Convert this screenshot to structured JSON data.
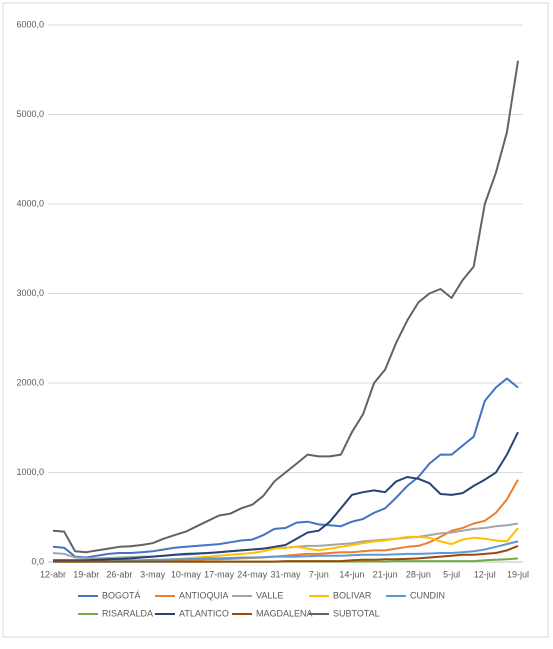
{
  "chart_data": {
    "type": "line",
    "categories": [
      "12-abr",
      null,
      null,
      "19-abr",
      null,
      null,
      "26-abr",
      null,
      null,
      "3-may",
      null,
      null,
      "10-may",
      null,
      null,
      "17-may",
      null,
      null,
      "24-may",
      null,
      null,
      "31-may",
      null,
      null,
      "7-jun",
      null,
      null,
      "14-jun",
      null,
      null,
      "21-jun",
      null,
      null,
      "28-jun",
      null,
      null,
      "5-jul",
      null,
      null,
      "12-jul",
      null,
      null,
      "19-jul"
    ],
    "ylim": [
      0,
      6000
    ],
    "yticks": [
      {
        "value": 0,
        "label": "0,0"
      },
      {
        "value": 1000,
        "label": "1000,0"
      },
      {
        "value": 2000,
        "label": "2000,0"
      },
      {
        "value": 3000,
        "label": "3000,0"
      },
      {
        "value": 4000,
        "label": "4000,0"
      },
      {
        "value": 5000,
        "label": "5000,0"
      },
      {
        "value": 6000,
        "label": "6000,0"
      }
    ],
    "grid": true,
    "legend": "bottom",
    "series": [
      {
        "name": "BOGOTÁ",
        "color": "#4472c4",
        "values": [
          170,
          160,
          60,
          50,
          70,
          90,
          100,
          100,
          110,
          120,
          140,
          160,
          170,
          180,
          190,
          200,
          220,
          240,
          250,
          300,
          370,
          380,
          440,
          450,
          420,
          410,
          400,
          450,
          480,
          550,
          600,
          720,
          850,
          950,
          1100,
          1200,
          1200,
          1300,
          1400,
          1800,
          1950,
          2050,
          1950
        ]
      },
      {
        "name": "ANTIOQUIA",
        "color": "#ed7d31",
        "values": [
          10,
          10,
          10,
          10,
          10,
          12,
          15,
          15,
          15,
          18,
          20,
          20,
          25,
          25,
          30,
          30,
          35,
          40,
          45,
          50,
          60,
          70,
          80,
          90,
          90,
          100,
          110,
          110,
          120,
          130,
          130,
          150,
          170,
          180,
          220,
          280,
          350,
          380,
          430,
          460,
          550,
          700,
          920
        ]
      },
      {
        "name": "VALLE",
        "color": "#a5a5a5",
        "values": [
          100,
          90,
          50,
          40,
          40,
          45,
          50,
          55,
          60,
          60,
          70,
          80,
          80,
          90,
          100,
          110,
          120,
          130,
          140,
          150,
          160,
          160,
          170,
          180,
          180,
          190,
          200,
          210,
          230,
          240,
          250,
          260,
          270,
          280,
          300,
          320,
          330,
          350,
          370,
          380,
          400,
          410,
          430
        ]
      },
      {
        "name": "BOLIVAR",
        "color": "#ffc000",
        "values": [
          5,
          5,
          5,
          5,
          10,
          10,
          10,
          15,
          15,
          20,
          25,
          30,
          40,
          50,
          60,
          70,
          80,
          90,
          100,
          120,
          150,
          160,
          170,
          150,
          130,
          150,
          170,
          190,
          210,
          230,
          240,
          260,
          280,
          280,
          270,
          230,
          200,
          250,
          270,
          260,
          240,
          230,
          380
        ]
      },
      {
        "name": "CUNDIN",
        "color": "#5b9bd5",
        "values": [
          10,
          10,
          10,
          10,
          15,
          15,
          20,
          20,
          20,
          25,
          25,
          30,
          30,
          35,
          40,
          40,
          45,
          50,
          50,
          55,
          60,
          60,
          60,
          65,
          70,
          70,
          70,
          75,
          80,
          80,
          80,
          85,
          90,
          90,
          95,
          100,
          100,
          110,
          120,
          140,
          170,
          200,
          230
        ]
      },
      {
        "name": "RISARALDA",
        "color": "#70ad47",
        "values": [
          2,
          2,
          2,
          2,
          2,
          2,
          2,
          2,
          2,
          2,
          2,
          2,
          2,
          2,
          2,
          2,
          2,
          2,
          2,
          2,
          2,
          5,
          5,
          5,
          5,
          5,
          5,
          5,
          5,
          5,
          5,
          10,
          10,
          10,
          10,
          10,
          10,
          10,
          10,
          20,
          25,
          30,
          40
        ]
      },
      {
        "name": "ATLANTICO",
        "color": "#264478",
        "values": [
          20,
          20,
          20,
          20,
          25,
          30,
          35,
          40,
          50,
          60,
          70,
          80,
          90,
          95,
          100,
          110,
          120,
          130,
          140,
          150,
          170,
          190,
          260,
          330,
          350,
          450,
          600,
          750,
          780,
          800,
          780,
          900,
          950,
          930,
          880,
          760,
          750,
          770,
          850,
          920,
          1000,
          1200,
          1450
        ]
      },
      {
        "name": "MAGDALENA",
        "color": "#9e480e",
        "values": [
          5,
          5,
          5,
          5,
          5,
          5,
          5,
          5,
          5,
          5,
          5,
          5,
          5,
          5,
          5,
          5,
          5,
          5,
          5,
          5,
          5,
          10,
          10,
          10,
          10,
          10,
          10,
          20,
          25,
          25,
          30,
          30,
          35,
          40,
          50,
          60,
          70,
          80,
          80,
          90,
          100,
          130,
          180
        ]
      },
      {
        "name": "SUBTOTAL",
        "color": "#636363",
        "values": [
          350,
          340,
          120,
          110,
          130,
          150,
          170,
          175,
          190,
          210,
          260,
          300,
          340,
          400,
          460,
          520,
          540,
          600,
          640,
          740,
          900,
          1000,
          1100,
          1200,
          1180,
          1180,
          1200,
          1450,
          1650,
          2000,
          2150,
          2450,
          2700,
          2900,
          3000,
          3050,
          2950,
          3150,
          3300,
          4000,
          4350,
          4800,
          5600
        ]
      }
    ]
  }
}
